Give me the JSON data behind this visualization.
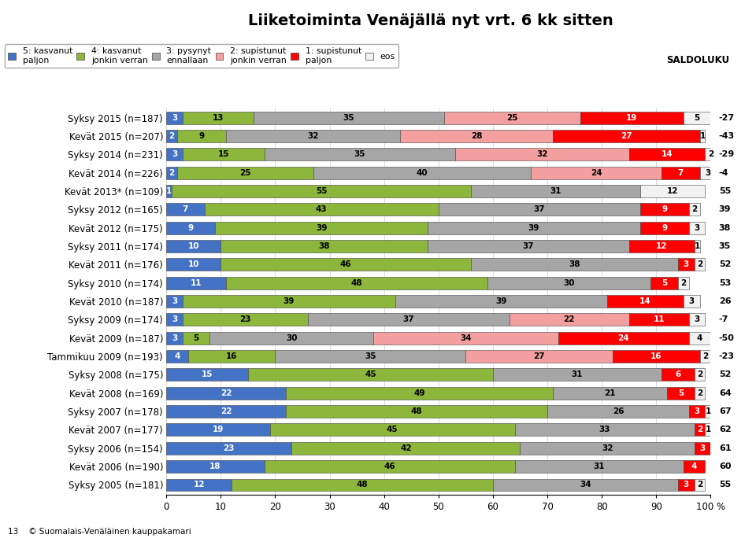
{
  "title": "Liiketoiminta Venäjällä nyt vrt. 6 kk sitten",
  "categories": [
    "Syksy 2015 (n=187)",
    "Kevät 2015 (n=207)",
    "Syksy 2014 (n=231)",
    "Kevät 2014 (n=226)",
    "Kevät 2013* (n=109)",
    "Syksy 2012 (n=165)",
    "Kevät 2012 (n=175)",
    "Syksy 2011 (n=174)",
    "Kevät 2011 (n=176)",
    "Syksy 2010 (n=174)",
    "Kevät 2010 (n=187)",
    "Syksy 2009 (n=174)",
    "Kevät 2009 (n=187)",
    "Tammikuu 2009 (n=193)",
    "Syksy 2008 (n=175)",
    "Kevät 2008 (n=169)",
    "Syksy 2007 (n=178)",
    "Kevät 2007 (n=177)",
    "Syksy 2006 (n=154)",
    "Kevät 2006 (n=190)",
    "Syksy 2005 (n=181)"
  ],
  "data": [
    [
      3,
      13,
      35,
      25,
      19,
      5
    ],
    [
      2,
      9,
      32,
      28,
      27,
      1
    ],
    [
      3,
      15,
      35,
      32,
      14,
      2
    ],
    [
      2,
      25,
      40,
      24,
      7,
      3
    ],
    [
      1,
      55,
      31,
      0,
      0,
      12
    ],
    [
      7,
      43,
      37,
      0,
      9,
      2
    ],
    [
      9,
      39,
      39,
      0,
      9,
      3
    ],
    [
      10,
      38,
      37,
      0,
      12,
      1
    ],
    [
      10,
      46,
      38,
      0,
      3,
      2
    ],
    [
      11,
      48,
      30,
      0,
      5,
      2
    ],
    [
      3,
      39,
      39,
      0,
      14,
      3
    ],
    [
      3,
      23,
      37,
      22,
      11,
      3
    ],
    [
      3,
      5,
      30,
      34,
      24,
      4
    ],
    [
      4,
      16,
      35,
      27,
      16,
      2
    ],
    [
      15,
      45,
      31,
      0,
      6,
      2
    ],
    [
      22,
      49,
      21,
      0,
      5,
      2
    ],
    [
      22,
      48,
      26,
      0,
      3,
      1
    ],
    [
      19,
      45,
      33,
      0,
      2,
      1
    ],
    [
      23,
      42,
      32,
      0,
      3,
      0
    ],
    [
      18,
      46,
      31,
      0,
      4,
      0
    ],
    [
      12,
      48,
      34,
      0,
      3,
      2
    ]
  ],
  "saldoluku": [
    -27,
    -43,
    -29,
    -4,
    55,
    39,
    38,
    35,
    52,
    53,
    26,
    -7,
    -50,
    -23,
    52,
    64,
    67,
    62,
    61,
    60,
    55
  ],
  "seg_colors": [
    "#4472c4",
    "#8db63c",
    "#a6a6a6",
    "#f4a0a0",
    "#ff0000",
    "#f2f2f2"
  ],
  "seg_text_colors": [
    "white",
    "black",
    "black",
    "black",
    "white",
    "black"
  ],
  "legend_labels": [
    "5: kasvanut\npaljon",
    "4: kasvanut\njonkin verran",
    "3: pysynyt\nennallaan",
    "2: supistunut\njonkin verran",
    "1: supistunut\npaljon",
    "eos"
  ],
  "legend_square_colors": [
    "#4472c4",
    "#8db63c",
    "#a6a6a6",
    "#f4a0a0",
    "#ff0000",
    "#f2f2f2"
  ],
  "saldoluku_label": "SALDOLUKU",
  "footer_text": "13    © Suomalais-Venäläinen kauppakamari"
}
